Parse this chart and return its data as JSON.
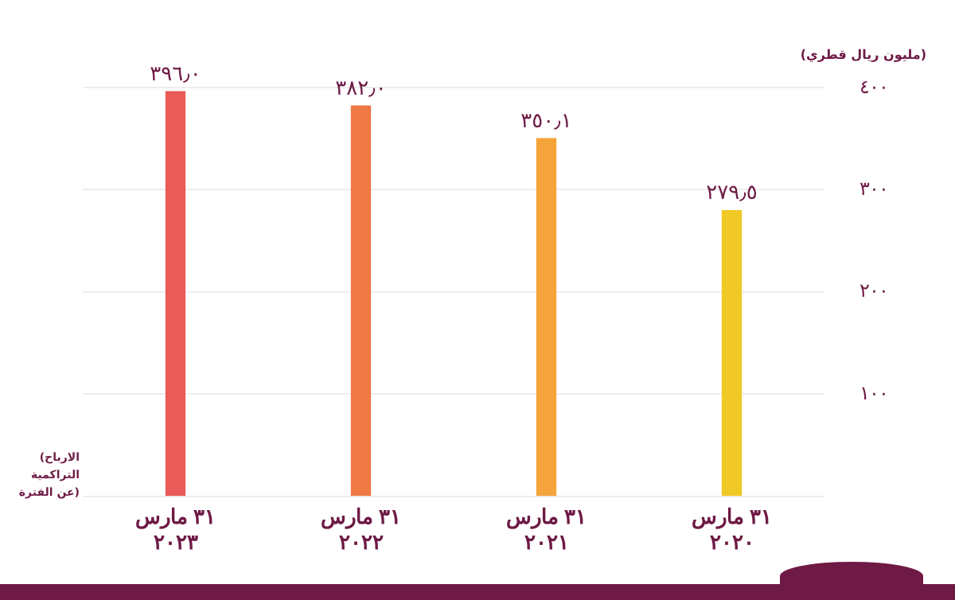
{
  "chart_data": {
    "type": "bar",
    "ylabel": "(مليون ريال قطري)",
    "annotations": [
      "(الارباح التراكمية عن الفترة)"
    ],
    "categories": [
      "٣١ مارس\n٢٠٢٣",
      "٣١ مارس\n٢٠٢٢",
      "٣١ مارس\n٢٠٢١",
      "٣١ مارس\n٢٠٢٠"
    ],
    "values": [
      396.0,
      382.0,
      350.1,
      279.5
    ],
    "colors": [
      "#e95b58",
      "#f07844",
      "#f5a33b",
      "#f0c927"
    ],
    "value_labels": [
      "٣٩٦٫٠",
      "٣٨٢٫٠",
      "٣٥٠٫١",
      "٢٧٩٫٥"
    ],
    "ylim": [
      0,
      400
    ],
    "yticks": [
      {
        "value": 0,
        "label": null
      },
      {
        "value": 100,
        "label": "١٠٠"
      },
      {
        "value": 200,
        "label": "٢٠٠"
      },
      {
        "value": 300,
        "label": "٣٠٠"
      },
      {
        "value": 400,
        "label": "٤٠٠"
      }
    ],
    "grid": "y",
    "legend": false
  }
}
